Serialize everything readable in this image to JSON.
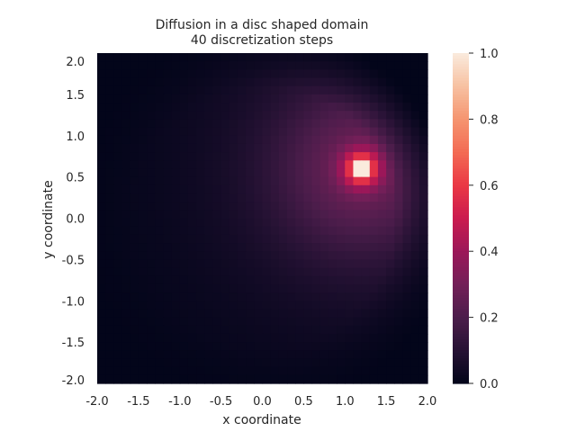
{
  "chart_data": {
    "type": "heatmap",
    "title_line1": "Diffusion in a disc shaped domain",
    "title_line2": "40 discretization steps",
    "xlabel": "x coordinate",
    "ylabel": "y coordinate",
    "xlim": [
      -2.0,
      2.0
    ],
    "ylim": [
      -2.0,
      2.0
    ],
    "grid": 40,
    "x_ticks": [
      -2.0,
      -1.5,
      -1.0,
      -0.5,
      0.0,
      0.5,
      1.0,
      1.5,
      2.0
    ],
    "y_ticks": [
      -2.0,
      -1.5,
      -1.0,
      -0.5,
      0.0,
      0.5,
      1.0,
      1.5,
      2.0
    ],
    "x_tick_labels": [
      "-2.0",
      "-1.5",
      "-1.0",
      "-0.5",
      "0.0",
      "0.5",
      "1.0",
      "1.5",
      "2.0"
    ],
    "y_tick_labels": [
      "-2.0",
      "-1.5",
      "-1.0",
      "-0.5",
      "0.0",
      "0.5",
      "1.0",
      "1.5",
      "2.0"
    ],
    "peak": {
      "x": 1.2,
      "y": 0.6,
      "value": 1.0
    },
    "colorbar": {
      "vmin": 0.0,
      "vmax": 1.0,
      "ticks": [
        0.0,
        0.2,
        0.4,
        0.6,
        0.8,
        1.0
      ],
      "tick_labels": [
        "0.0",
        "0.2",
        "0.4",
        "0.6",
        "0.8",
        "1.0"
      ],
      "colormap": "rocket"
    },
    "grid_lines": false
  }
}
